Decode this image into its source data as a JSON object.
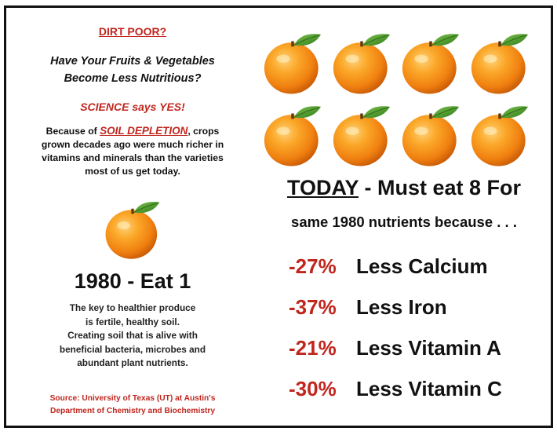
{
  "left": {
    "dirt_poor": "DIRT POOR?",
    "question_line1": "Have Your Fruits & Vegetables",
    "question_line2": "Become Less Nutritious?",
    "science": "SCIENCE says YES!",
    "because_prefix": "Because of ",
    "because_highlight": "SOIL DEPLETION",
    "because_line1_suffix": ", crops",
    "because_line2": "grown decades ago were much richer in",
    "because_line3": "vitamins and minerals than the varieties",
    "because_line4": "most of us get today.",
    "eat1": "1980 - Eat 1",
    "key_line1": "The key to healthier produce",
    "key_line2": "is fertile, healthy soil.",
    "key_line3": "Creating soil that is alive with",
    "key_line4": "beneficial bacteria, microbes and",
    "key_line5": "abundant plant nutrients.",
    "source_line1": "Source: University of Texas (UT) at Austin's",
    "source_line2": "Department of Chemistry and Biochemistry"
  },
  "right": {
    "today_label": "TODAY",
    "today_rest": " - Must eat 8 For",
    "same_line": "same 1980 nutrients because . . .",
    "stats": [
      {
        "pct": "-27%",
        "label": "Less Calcium"
      },
      {
        "pct": "-37%",
        "label": "Less Iron"
      },
      {
        "pct": "-21%",
        "label": "Less Vitamin A"
      },
      {
        "pct": "-30%",
        "label": "Less Vitamin C"
      }
    ]
  },
  "colors": {
    "accent_red": "#c0261e",
    "orange": "#f28a12",
    "leaf": "#4f9a2a"
  },
  "icons": [
    "orange-icon"
  ]
}
